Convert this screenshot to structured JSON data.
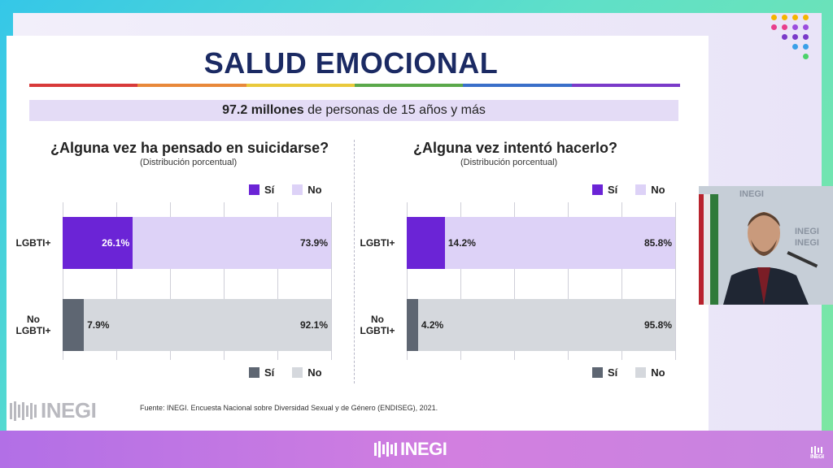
{
  "slide": {
    "title": "SALUD EMOCIONAL",
    "banner_bold": "97.2 millones",
    "banner_rest": " de personas de 15 años y más",
    "source": "Fuente:  INEGI. Encuesta Nacional sobre Diversidad Sexual y de Género (ENDISEG), 2021.",
    "logo_text": "INEGI"
  },
  "branding": {
    "bottom_logo": "INEGI",
    "corner_logo": "INEGI",
    "video_wall_text": "INEGI"
  },
  "colors": {
    "title": "#1b2a63",
    "lgbti_si": "#6b24d6",
    "lgbti_no": "#ddd2f7",
    "nolgbti_si": "#5e6672",
    "nolgbti_no": "#d5d8dd",
    "rainbow": [
      "#d83a3a",
      "#e8883a",
      "#e9c93b",
      "#5aa84a",
      "#3a6fc9",
      "#7a3ac9"
    ]
  },
  "chart_data": [
    {
      "type": "bar",
      "orientation": "horizontal-stacked",
      "title": "¿Alguna vez ha pensado en suicidarse?",
      "subtitle": "(Distribución porcentual)",
      "categories": [
        "LGBTI+",
        "No LGBTI+"
      ],
      "category_lines": [
        [
          "LGBTI+"
        ],
        [
          "No",
          "LGBTI+"
        ]
      ],
      "series": [
        {
          "name": "Sí",
          "values": [
            26.1,
            7.9
          ]
        },
        {
          "name": "No",
          "values": [
            73.9,
            92.1
          ]
        }
      ],
      "value_labels": [
        [
          "26.1%",
          "73.9%"
        ],
        [
          "7.9%",
          "92.1%"
        ]
      ],
      "legend_top": [
        "Sí",
        "No"
      ],
      "legend_bottom": [
        "Sí",
        "No"
      ],
      "xlim": [
        0,
        100
      ]
    },
    {
      "type": "bar",
      "orientation": "horizontal-stacked",
      "title": "¿Alguna vez intentó hacerlo?",
      "subtitle": "(Distribución porcentual)",
      "categories": [
        "LGBTI+",
        "No LGBTI+"
      ],
      "category_lines": [
        [
          "LGBTI+"
        ],
        [
          "No",
          "LGBTI+"
        ]
      ],
      "series": [
        {
          "name": "Sí",
          "values": [
            14.2,
            4.2
          ]
        },
        {
          "name": "No",
          "values": [
            85.8,
            95.8
          ]
        }
      ],
      "value_labels": [
        [
          "14.2%",
          "85.8%"
        ],
        [
          "4.2%",
          "95.8%"
        ]
      ],
      "legend_top": [
        "Sí",
        "No"
      ],
      "legend_bottom": [
        "Sí",
        "No"
      ],
      "xlim": [
        0,
        100
      ]
    }
  ]
}
